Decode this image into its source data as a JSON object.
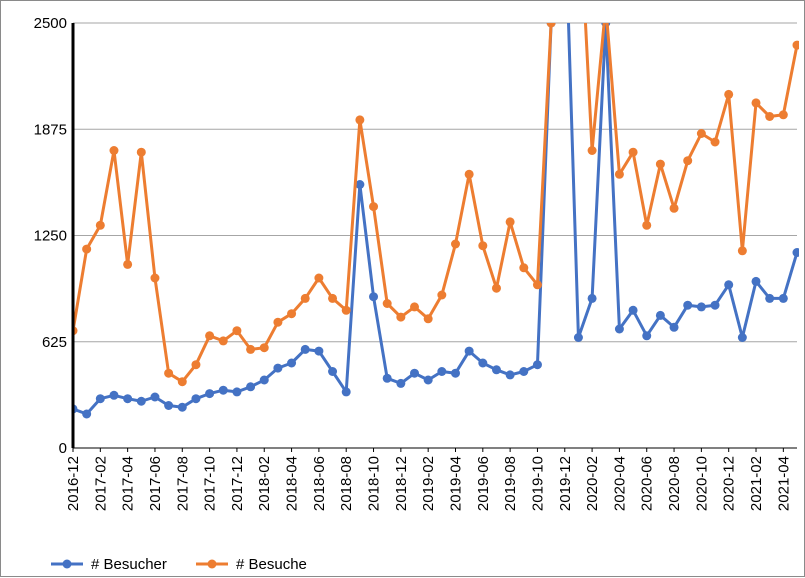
{
  "chart_data": {
    "type": "line",
    "title": "",
    "xlabel": "",
    "ylabel": "",
    "ylim": [
      0,
      2500
    ],
    "yticks": [
      "0",
      "625",
      "1250",
      "1875",
      "2500"
    ],
    "grid": "horizontal",
    "legend_position": "bottom-left",
    "categories": [
      "2016-12",
      "2017-01",
      "2017-02",
      "2017-03",
      "2017-04",
      "2017-05",
      "2017-06",
      "2017-07",
      "2017-08",
      "2017-09",
      "2017-10",
      "2017-11",
      "2017-12",
      "2018-01",
      "2018-02",
      "2018-03",
      "2018-04",
      "2018-05",
      "2018-06",
      "2018-07",
      "2018-08",
      "2018-09",
      "2018-10",
      "2018-11",
      "2018-12",
      "2019-01",
      "2019-02",
      "2019-03",
      "2019-04",
      "2019-05",
      "2019-06",
      "2019-07",
      "2019-08",
      "2019-09",
      "2019-10",
      "2019-11",
      "2019-12",
      "2020-01",
      "2020-02",
      "2020-03",
      "2020-04",
      "2020-05",
      "2020-06",
      "2020-07",
      "2020-08",
      "2020-09",
      "2020-10",
      "2020-11",
      "2020-12",
      "2021-01",
      "2021-02",
      "2021-03",
      "2021-04",
      "2021-05"
    ],
    "tick_labels": [
      "2016-12",
      "2017-02",
      "2017-04",
      "2017-06",
      "2017-08",
      "2017-10",
      "2017-12",
      "2018-02",
      "2018-04",
      "2018-06",
      "2018-08",
      "2018-10",
      "2018-12",
      "2019-02",
      "2019-04",
      "2019-06",
      "2019-08",
      "2019-10",
      "2019-12",
      "2020-02",
      "2020-04",
      "2020-06",
      "2020-08",
      "2020-10",
      "2020-12",
      "2021-02",
      "2021-04"
    ],
    "series": [
      {
        "name": "# Besucher",
        "color": "#4472c4",
        "values": [
          230,
          200,
          290,
          310,
          290,
          275,
          300,
          250,
          240,
          290,
          320,
          340,
          330,
          360,
          400,
          470,
          500,
          580,
          570,
          450,
          330,
          1550,
          890,
          410,
          380,
          440,
          400,
          450,
          440,
          570,
          500,
          460,
          430,
          450,
          490,
          2500,
          3200,
          650,
          880,
          2500,
          700,
          810,
          660,
          780,
          710,
          840,
          830,
          840,
          960,
          650,
          980,
          880,
          880,
          1150
        ]
      },
      {
        "name": "# Besuche",
        "color": "#ed7d31",
        "values": [
          690,
          1170,
          1310,
          1750,
          1080,
          1740,
          1000,
          440,
          390,
          490,
          660,
          630,
          690,
          580,
          590,
          740,
          790,
          880,
          1000,
          880,
          810,
          1930,
          1420,
          850,
          770,
          830,
          760,
          900,
          1200,
          1610,
          1190,
          940,
          1330,
          1060,
          960,
          2500,
          3300,
          3300,
          1750,
          2600,
          1610,
          1740,
          1310,
          1670,
          1410,
          1690,
          1850,
          1800,
          2080,
          1160,
          2030,
          1950,
          1960,
          2370
        ]
      }
    ]
  }
}
